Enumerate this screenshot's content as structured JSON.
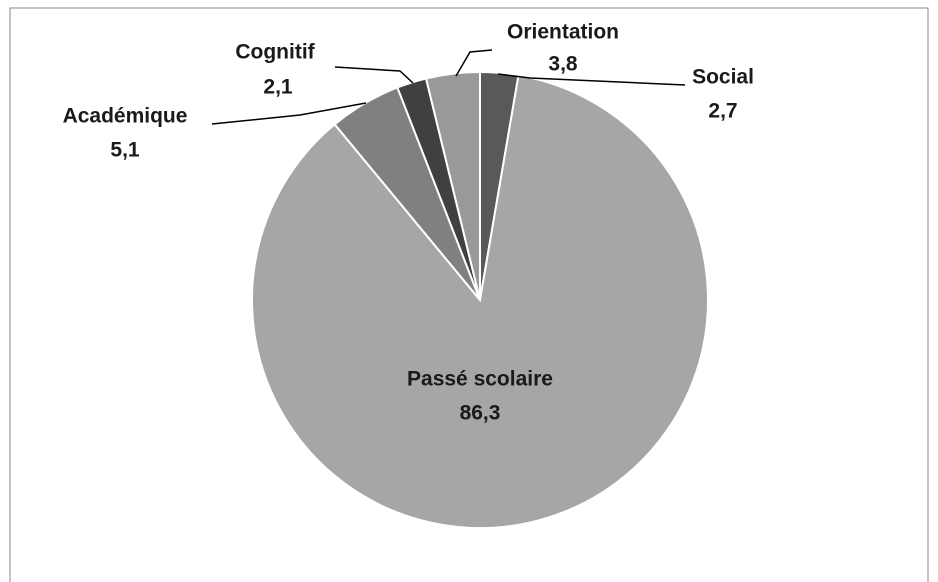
{
  "chart_data": {
    "type": "pie",
    "categories": [
      "Social",
      "Passé scolaire",
      "Académique",
      "Cognitif",
      "Orientation"
    ],
    "values": [
      2.7,
      86.3,
      5.1,
      2.1,
      3.8
    ],
    "value_labels": [
      "2,7",
      "86,3",
      "5,1",
      "2,1",
      "3,8"
    ],
    "colors": [
      "#595959",
      "#a6a6a6",
      "#808080",
      "#404040",
      "#999999"
    ]
  }
}
